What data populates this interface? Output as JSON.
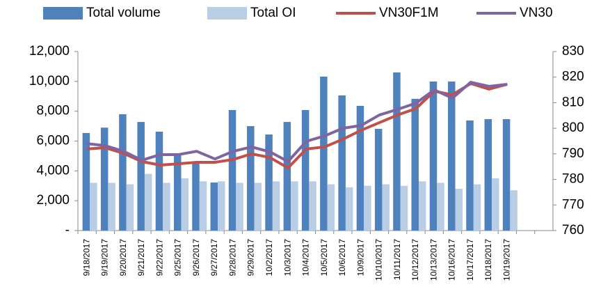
{
  "chart_data": {
    "type": "bar-line",
    "categories": [
      "9/18/2017",
      "9/19/2017",
      "9/20/2017",
      "9/21/2017",
      "9/22/2017",
      "9/25/2017",
      "9/26/2017",
      "9/27/2017",
      "9/28/2017",
      "9/29/2017",
      "10/2/2017",
      "10/3/2017",
      "10/4/2017",
      "10/5/2017",
      "10/6/2017",
      "10/9/2017",
      "10/10/2017",
      "10/11/2017",
      "10/12/2017",
      "10/13/2017",
      "10/16/2017",
      "10/17/2017",
      "10/18/2017",
      "10/19/2017",
      null,
      null
    ],
    "series": [
      {
        "name": "Total volume",
        "type": "bar",
        "color": "#4f81bd",
        "values": [
          6540,
          6900,
          7800,
          7280,
          6630,
          5090,
          4580,
          3220,
          8080,
          7000,
          6440,
          7280,
          8080,
          10320,
          9060,
          8360,
          6820,
          10600,
          8830,
          9990,
          9990,
          7380,
          7470,
          7470,
          null,
          null
        ]
      },
      {
        "name": "Total OI",
        "type": "bar",
        "color": "#b9cde5",
        "values": [
          3200,
          3200,
          3100,
          3800,
          3200,
          3500,
          3300,
          3300,
          3200,
          3200,
          3300,
          3300,
          3300,
          3100,
          2900,
          3000,
          3100,
          3000,
          3300,
          3200,
          2800,
          3100,
          3500,
          2700,
          null,
          null
        ]
      },
      {
        "name": "VN30F1M",
        "type": "line",
        "axis": "y2",
        "color": "#c0504d",
        "values": [
          791.9,
          792.4,
          790.2,
          787,
          785.6,
          786.1,
          786.7,
          786.7,
          787.8,
          790,
          788.6,
          784.5,
          791.9,
          792.7,
          795.7,
          799.2,
          802.2,
          805.2,
          807.7,
          814.5,
          813.1,
          817.5,
          815.3,
          817.2,
          null,
          null
        ]
      },
      {
        "name": "VN30",
        "type": "line",
        "axis": "y2",
        "color": "#8064a2",
        "values": [
          794,
          793.2,
          791,
          787.5,
          789.7,
          789.7,
          791,
          788,
          791,
          792.7,
          790.8,
          787,
          794.9,
          797,
          800,
          801.1,
          805.2,
          807.4,
          809.8,
          815,
          811.8,
          818,
          816.4,
          817.2,
          null,
          null
        ]
      }
    ],
    "ylim": [
      0,
      12000
    ],
    "yticks": [
      {
        "value": 0,
        "label": "-"
      },
      {
        "value": 2000,
        "label": "2,000"
      },
      {
        "value": 4000,
        "label": "4,000"
      },
      {
        "value": 6000,
        "label": "6,000"
      },
      {
        "value": 8000,
        "label": "8,000"
      },
      {
        "value": 10000,
        "label": "10,000"
      },
      {
        "value": 12000,
        "label": "12,000"
      }
    ],
    "y2lim": [
      760,
      830
    ],
    "y2ticks": [
      760,
      770,
      780,
      790,
      800,
      810,
      820,
      830
    ],
    "legend": "top"
  }
}
